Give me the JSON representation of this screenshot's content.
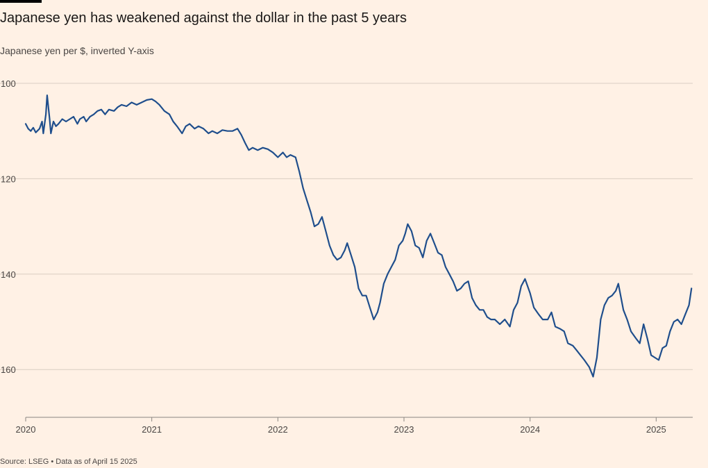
{
  "chart_data": {
    "type": "line",
    "title": "Japanese yen has weakened against the dollar in the past 5 years",
    "subtitle": "Japanese yen per $, inverted Y-axis",
    "source": "Source: LSEG • Data as of April 15 2025",
    "y_inverted": true,
    "ylim": [
      100,
      170
    ],
    "y_ticks": [
      100,
      120,
      140,
      160
    ],
    "y_tick_labels": [
      "100",
      "120",
      "140",
      "160"
    ],
    "xlim": [
      2020.0,
      2025.29
    ],
    "x_ticks": [
      2020,
      2021,
      2022,
      2023,
      2024,
      2025
    ],
    "x_tick_labels": [
      "2020",
      "2021",
      "2022",
      "2023",
      "2024",
      "2025"
    ],
    "grid": true,
    "line_color": "#1f4e8c",
    "series": [
      {
        "name": "",
        "points": [
          [
            2020.0,
            108.5
          ],
          [
            2020.02,
            109.5
          ],
          [
            2020.04,
            110.0
          ],
          [
            2020.06,
            109.3
          ],
          [
            2020.08,
            110.3
          ],
          [
            2020.11,
            109.5
          ],
          [
            2020.13,
            108.0
          ],
          [
            2020.14,
            110.5
          ],
          [
            2020.16,
            106.5
          ],
          [
            2020.17,
            102.5
          ],
          [
            2020.19,
            107.5
          ],
          [
            2020.2,
            110.5
          ],
          [
            2020.22,
            108.0
          ],
          [
            2020.24,
            109.0
          ],
          [
            2020.26,
            108.5
          ],
          [
            2020.29,
            107.5
          ],
          [
            2020.32,
            108.0
          ],
          [
            2020.35,
            107.5
          ],
          [
            2020.38,
            107.0
          ],
          [
            2020.41,
            108.5
          ],
          [
            2020.43,
            107.5
          ],
          [
            2020.46,
            107.0
          ],
          [
            2020.48,
            108.0
          ],
          [
            2020.51,
            107.0
          ],
          [
            2020.54,
            106.5
          ],
          [
            2020.57,
            105.8
          ],
          [
            2020.6,
            105.5
          ],
          [
            2020.63,
            106.5
          ],
          [
            2020.66,
            105.5
          ],
          [
            2020.7,
            105.8
          ],
          [
            2020.73,
            105.0
          ],
          [
            2020.76,
            104.5
          ],
          [
            2020.8,
            104.8
          ],
          [
            2020.84,
            104.0
          ],
          [
            2020.88,
            104.5
          ],
          [
            2020.92,
            104.0
          ],
          [
            2020.96,
            103.5
          ],
          [
            2021.0,
            103.3
          ],
          [
            2021.03,
            103.8
          ],
          [
            2021.06,
            104.5
          ],
          [
            2021.1,
            105.8
          ],
          [
            2021.14,
            106.5
          ],
          [
            2021.17,
            108.0
          ],
          [
            2021.2,
            109.0
          ],
          [
            2021.24,
            110.5
          ],
          [
            2021.27,
            109.0
          ],
          [
            2021.3,
            108.5
          ],
          [
            2021.34,
            109.5
          ],
          [
            2021.37,
            109.0
          ],
          [
            2021.41,
            109.5
          ],
          [
            2021.45,
            110.5
          ],
          [
            2021.48,
            110.0
          ],
          [
            2021.52,
            110.5
          ],
          [
            2021.56,
            109.8
          ],
          [
            2021.6,
            110.0
          ],
          [
            2021.64,
            110.0
          ],
          [
            2021.68,
            109.5
          ],
          [
            2021.71,
            110.8
          ],
          [
            2021.74,
            112.5
          ],
          [
            2021.77,
            114.0
          ],
          [
            2021.8,
            113.5
          ],
          [
            2021.84,
            114.0
          ],
          [
            2021.88,
            113.5
          ],
          [
            2021.92,
            113.8
          ],
          [
            2021.96,
            114.5
          ],
          [
            2022.0,
            115.5
          ],
          [
            2022.04,
            114.5
          ],
          [
            2022.07,
            115.5
          ],
          [
            2022.1,
            115.0
          ],
          [
            2022.14,
            115.5
          ],
          [
            2022.17,
            118.5
          ],
          [
            2022.2,
            122.0
          ],
          [
            2022.23,
            124.5
          ],
          [
            2022.26,
            127.0
          ],
          [
            2022.29,
            130.0
          ],
          [
            2022.32,
            129.5
          ],
          [
            2022.35,
            128.0
          ],
          [
            2022.38,
            131.0
          ],
          [
            2022.41,
            134.0
          ],
          [
            2022.44,
            136.0
          ],
          [
            2022.47,
            137.0
          ],
          [
            2022.5,
            136.5
          ],
          [
            2022.53,
            135.0
          ],
          [
            2022.55,
            133.5
          ],
          [
            2022.58,
            136.0
          ],
          [
            2022.61,
            138.5
          ],
          [
            2022.64,
            143.0
          ],
          [
            2022.67,
            144.5
          ],
          [
            2022.7,
            144.5
          ],
          [
            2022.73,
            147.0
          ],
          [
            2022.76,
            149.5
          ],
          [
            2022.79,
            148.0
          ],
          [
            2022.81,
            146.0
          ],
          [
            2022.84,
            142.0
          ],
          [
            2022.87,
            140.0
          ],
          [
            2022.9,
            138.5
          ],
          [
            2022.93,
            137.0
          ],
          [
            2022.96,
            134.0
          ],
          [
            2022.99,
            133.0
          ],
          [
            2023.01,
            131.5
          ],
          [
            2023.03,
            129.5
          ],
          [
            2023.06,
            131.0
          ],
          [
            2023.09,
            134.0
          ],
          [
            2023.12,
            134.5
          ],
          [
            2023.15,
            136.5
          ],
          [
            2023.18,
            133.0
          ],
          [
            2023.21,
            131.5
          ],
          [
            2023.24,
            133.5
          ],
          [
            2023.27,
            135.5
          ],
          [
            2023.3,
            136.0
          ],
          [
            2023.33,
            138.5
          ],
          [
            2023.36,
            140.0
          ],
          [
            2023.39,
            141.5
          ],
          [
            2023.42,
            143.5
          ],
          [
            2023.45,
            143.0
          ],
          [
            2023.48,
            142.0
          ],
          [
            2023.51,
            141.5
          ],
          [
            2023.54,
            145.0
          ],
          [
            2023.57,
            146.5
          ],
          [
            2023.6,
            147.5
          ],
          [
            2023.63,
            147.5
          ],
          [
            2023.66,
            149.0
          ],
          [
            2023.69,
            149.5
          ],
          [
            2023.72,
            149.5
          ],
          [
            2023.76,
            150.5
          ],
          [
            2023.8,
            149.5
          ],
          [
            2023.84,
            151.0
          ],
          [
            2023.87,
            147.5
          ],
          [
            2023.9,
            146.0
          ],
          [
            2023.93,
            142.5
          ],
          [
            2023.96,
            141.0
          ],
          [
            2024.0,
            144.0
          ],
          [
            2024.03,
            147.0
          ],
          [
            2024.07,
            148.5
          ],
          [
            2024.1,
            149.5
          ],
          [
            2024.14,
            149.5
          ],
          [
            2024.17,
            148.0
          ],
          [
            2024.2,
            151.0
          ],
          [
            2024.24,
            151.5
          ],
          [
            2024.27,
            152.0
          ],
          [
            2024.3,
            154.5
          ],
          [
            2024.34,
            155.0
          ],
          [
            2024.37,
            156.0
          ],
          [
            2024.4,
            157.0
          ],
          [
            2024.43,
            158.0
          ],
          [
            2024.47,
            159.5
          ],
          [
            2024.5,
            161.5
          ],
          [
            2024.53,
            157.5
          ],
          [
            2024.56,
            149.5
          ],
          [
            2024.59,
            146.5
          ],
          [
            2024.62,
            145.0
          ],
          [
            2024.65,
            144.5
          ],
          [
            2024.68,
            143.5
          ],
          [
            2024.7,
            142.0
          ],
          [
            2024.74,
            147.5
          ],
          [
            2024.77,
            149.5
          ],
          [
            2024.8,
            152.0
          ],
          [
            2024.84,
            153.5
          ],
          [
            2024.87,
            154.5
          ],
          [
            2024.9,
            150.5
          ],
          [
            2024.93,
            153.5
          ],
          [
            2024.96,
            157.0
          ],
          [
            2024.99,
            157.5
          ],
          [
            2025.02,
            158.0
          ],
          [
            2025.05,
            155.5
          ],
          [
            2025.08,
            155.0
          ],
          [
            2025.11,
            152.0
          ],
          [
            2025.14,
            150.0
          ],
          [
            2025.17,
            149.5
          ],
          [
            2025.2,
            150.5
          ],
          [
            2025.23,
            148.5
          ],
          [
            2025.26,
            146.5
          ],
          [
            2025.28,
            143.0
          ]
        ]
      }
    ]
  }
}
